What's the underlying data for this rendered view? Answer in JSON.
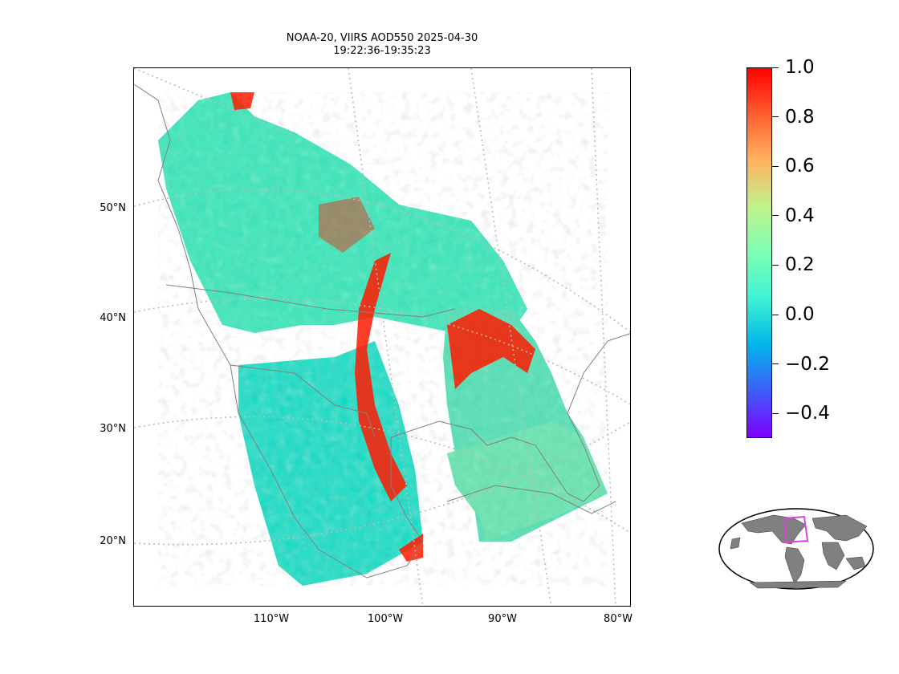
{
  "title": {
    "line1": "NOAA-20, VIIRS AOD550 2025-04-30",
    "line2": "19:22:36-19:35:23"
  },
  "map": {
    "lat_labels": [
      "50°N",
      "40°N",
      "30°N",
      "20°N"
    ],
    "lon_labels": [
      "110°W",
      "100°W",
      "90°W",
      "80°W"
    ],
    "gridline_color": "#bbbbbb",
    "coastline_color": "#808080"
  },
  "colorbar": {
    "colormap": "rainbow",
    "min": -0.5,
    "max": 1.0,
    "tick_labels": [
      "1.0",
      "0.8",
      "0.6",
      "0.4",
      "0.2",
      "0.0",
      "−0.2",
      "−0.4"
    ],
    "tick_values": [
      1.0,
      0.8,
      0.6,
      0.4,
      0.2,
      0.0,
      -0.2,
      -0.4
    ],
    "colors": [
      "#7f00ff",
      "#3f5dfa",
      "#00b4eb",
      "#3ef2d4",
      "#7dffb4",
      "#c0f28c",
      "#ffb360",
      "#ff5f30",
      "#ff0000"
    ]
  },
  "inset": {
    "type": "globe-locator",
    "land_color": "#808080",
    "box_color": "#e040e0"
  }
}
